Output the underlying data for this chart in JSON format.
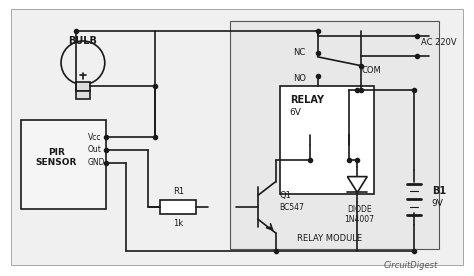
{
  "bg_color": "#ffffff",
  "border_color": "#333333",
  "line_color": "#1a1a1a",
  "text_color": "#1a1a1a",
  "fig_width": 4.74,
  "fig_height": 2.76,
  "title_text": "CircuitDigest",
  "watermark_color": "#555555",
  "components": {
    "bulb_label": "BULB",
    "pir_label": "PIR\nSENSOR",
    "pir_pins": [
      "Vcc",
      "Out",
      "GND"
    ],
    "relay_label": "RELAY",
    "relay_voltage": "6V",
    "nc_label": "NC",
    "no_label": "NO",
    "com_label": "COM",
    "r1_label": "R1",
    "r1_val": "1k",
    "q1_label": "Q1",
    "q1_type": "BC547",
    "diode_label": "DIODE\n1N4007",
    "battery_label": "B1",
    "battery_val": "9V",
    "ac_label": "AC 220V",
    "relay_module_label": "RELAY MODULE"
  }
}
